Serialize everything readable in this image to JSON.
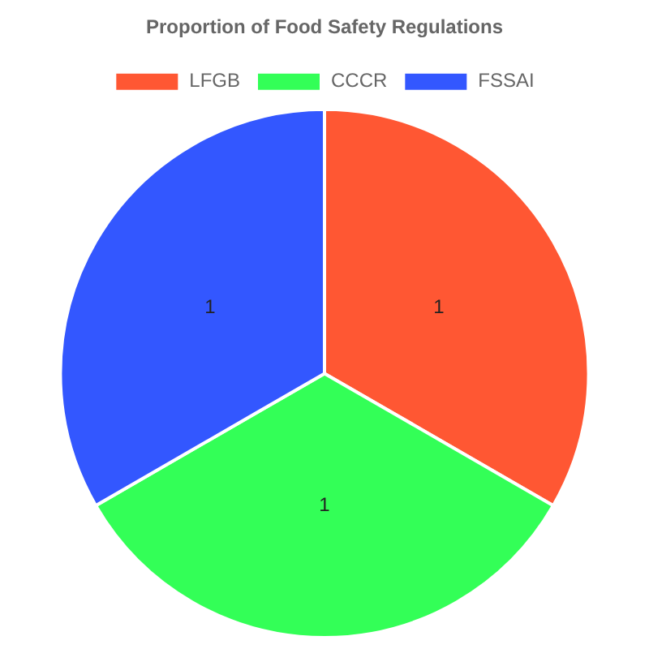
{
  "chart_data": {
    "type": "pie",
    "title": "Proportion of Food Safety Regulations",
    "categories": [
      "LFGB",
      "CCCR",
      "FSSAI"
    ],
    "values": [
      1,
      1,
      1
    ],
    "colors": [
      "#ff5733",
      "#33ff57",
      "#3357ff"
    ],
    "legend": "top",
    "data_labels": true
  }
}
